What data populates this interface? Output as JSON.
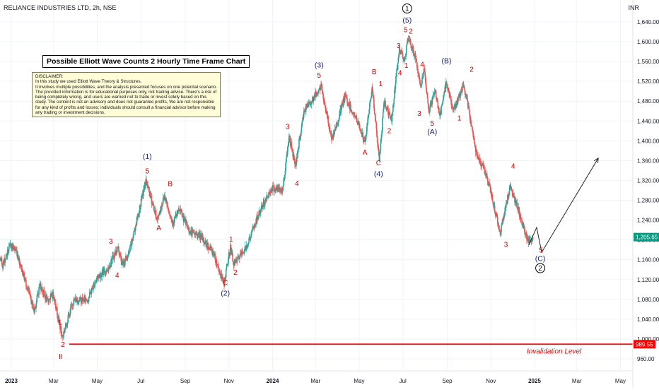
{
  "header": {
    "symbol_line": "RELIANCE INDUSTRIES LTD, 2h, NSE",
    "currency": "INR"
  },
  "annotations": {
    "title_box": "Possible Elliott Wave Counts 2 Hourly Time Frame Chart",
    "disclaimer": "DISCLAIMER:\nIn this study we used Elliott Wave Theory & Structures,\nIt involves multiple possibilities, and the analysis presented focuses on one potential scenario. The provided information is for educational purposes only, not trading advice. There's a risk of being completely wrong, and users are warned not to trade or invest solely based on this study. The content is not an advisory and does not guarantee profits, We are not responsible for any kind of profits and losses; individuals should consult a financial advisor before making any trading or investment decisions.",
    "invalidation_label": "Invalidation Level"
  },
  "colors": {
    "up": "#26a69a",
    "down": "#ef5350",
    "minor_label": "#d50000",
    "major_label": "#1a237e",
    "invalidation": "#ff0000",
    "price_badge": "#089981",
    "grid": "#f0f3fa",
    "axis_text": "#131722"
  },
  "chart_data": {
    "type": "candlestick",
    "title": "Possible Elliott Wave Counts 2 Hourly Time Frame Chart",
    "symbol": "RELIANCE INDUSTRIES LTD",
    "timeframe": "2h",
    "exchange": "NSE",
    "ylim": [
      940,
      1660
    ],
    "y_ticks": [
      960,
      1000,
      1040,
      1080,
      1120,
      1160,
      1200,
      1240,
      1280,
      1320,
      1360,
      1400,
      1440,
      1480,
      1520,
      1560,
      1600,
      1640
    ],
    "y_tick_labels": [
      "960.00",
      "1,000.00",
      "1,040.00",
      "1,080.00",
      "1,120.00",
      "1,160.00",
      "1,200.00",
      "1,240.00",
      "1,280.00",
      "1,320.00",
      "1,360.00",
      "1,400.00",
      "1,440.00",
      "1,480.00",
      "1,520.00",
      "1,560.00",
      "1,600.00",
      "1,640.00"
    ],
    "x_domain": [
      "2023-01-01",
      "2025-05-31"
    ],
    "x_ticks": [
      {
        "date": "2023-01-01",
        "label": "2023",
        "bold": true
      },
      {
        "date": "2023-03-01",
        "label": "Mar"
      },
      {
        "date": "2023-05-01",
        "label": "May"
      },
      {
        "date": "2023-07-01",
        "label": "Jul"
      },
      {
        "date": "2023-09-01",
        "label": "Sep"
      },
      {
        "date": "2023-11-01",
        "label": "Nov"
      },
      {
        "date": "2024-01-01",
        "label": "2024",
        "bold": true
      },
      {
        "date": "2024-03-01",
        "label": "Mar"
      },
      {
        "date": "2024-05-01",
        "label": "May"
      },
      {
        "date": "2024-07-01",
        "label": "Jul"
      },
      {
        "date": "2024-09-01",
        "label": "Sep"
      },
      {
        "date": "2024-11-01",
        "label": "Nov"
      },
      {
        "date": "2025-01-01",
        "label": "2025",
        "bold": true
      },
      {
        "date": "2025-03-01",
        "label": "Mar"
      },
      {
        "date": "2025-05-01",
        "label": "May"
      }
    ],
    "price_path": [
      [
        "2022-12-02",
        1200
      ],
      [
        "2022-12-20",
        1150
      ],
      [
        "2022-12-31",
        1190
      ],
      [
        "2023-01-08",
        1178
      ],
      [
        "2023-02-02",
        1056
      ],
      [
        "2023-02-10",
        1110
      ],
      [
        "2023-02-20",
        1076
      ],
      [
        "2023-03-01",
        1090
      ],
      [
        "2023-03-13",
        1003
      ],
      [
        "2023-03-29",
        1078
      ],
      [
        "2023-04-18",
        1080
      ],
      [
        "2023-05-01",
        1125
      ],
      [
        "2023-05-15",
        1140
      ],
      [
        "2023-05-30",
        1185
      ],
      [
        "2023-06-05",
        1150
      ],
      [
        "2023-06-14",
        1170
      ],
      [
        "2023-06-29",
        1262
      ],
      [
        "2023-07-08",
        1320
      ],
      [
        "2023-07-24",
        1240
      ],
      [
        "2023-08-03",
        1290
      ],
      [
        "2023-08-14",
        1235
      ],
      [
        "2023-08-24",
        1260
      ],
      [
        "2023-09-08",
        1215
      ],
      [
        "2023-09-20",
        1210
      ],
      [
        "2023-10-10",
        1175
      ],
      [
        "2023-10-25",
        1110
      ],
      [
        "2023-11-03",
        1185
      ],
      [
        "2023-11-08",
        1150
      ],
      [
        "2023-11-25",
        1185
      ],
      [
        "2023-12-15",
        1260
      ],
      [
        "2023-12-31",
        1305
      ],
      [
        "2024-01-15",
        1300
      ],
      [
        "2024-01-24",
        1410
      ],
      [
        "2024-02-02",
        1350
      ],
      [
        "2024-02-14",
        1460
      ],
      [
        "2024-03-02",
        1495
      ],
      [
        "2024-03-09",
        1510
      ],
      [
        "2024-03-24",
        1400
      ],
      [
        "2024-04-11",
        1490
      ],
      [
        "2024-05-01",
        1430
      ],
      [
        "2024-05-09",
        1395
      ],
      [
        "2024-05-19",
        1510
      ],
      [
        "2024-05-29",
        1360
      ],
      [
        "2024-06-05",
        1480
      ],
      [
        "2024-06-15",
        1440
      ],
      [
        "2024-06-26",
        1585
      ],
      [
        "2024-07-04",
        1565
      ],
      [
        "2024-07-08",
        1605
      ],
      [
        "2024-07-16",
        1580
      ],
      [
        "2024-07-20",
        1560
      ],
      [
        "2024-07-25",
        1510
      ],
      [
        "2024-07-31",
        1540
      ],
      [
        "2024-08-06",
        1460
      ],
      [
        "2024-08-15",
        1500
      ],
      [
        "2024-08-22",
        1450
      ],
      [
        "2024-08-31",
        1520
      ],
      [
        "2024-09-09",
        1460
      ],
      [
        "2024-09-24",
        1510
      ],
      [
        "2024-09-30",
        1470
      ],
      [
        "2024-10-11",
        1380
      ],
      [
        "2024-10-26",
        1330
      ],
      [
        "2024-11-14",
        1215
      ],
      [
        "2024-11-28",
        1310
      ],
      [
        "2024-12-22",
        1200
      ],
      [
        "2024-12-30",
        1205
      ]
    ],
    "projection": [
      [
        "2024-12-24",
        1190
      ],
      [
        "2025-01-04",
        1225
      ],
      [
        "2025-01-11",
        1175
      ],
      [
        "2025-03-31",
        1365
      ]
    ],
    "invalidation_level": 989.55,
    "last_price": 1205.65,
    "last_price_label": "1,205.65",
    "invalidation_price_label": "989.55",
    "wave_labels": [
      {
        "text": "1",
        "date": "2023-03-10",
        "price": 1035,
        "tier": "minor"
      },
      {
        "text": "2",
        "date": "2023-03-14",
        "price": 990,
        "tier": "minor"
      },
      {
        "text": "II",
        "date": "2023-03-11",
        "price": 966,
        "tier": "minor"
      },
      {
        "text": "3",
        "date": "2023-05-20",
        "price": 1198,
        "tier": "minor"
      },
      {
        "text": "4",
        "date": "2023-05-29",
        "price": 1130,
        "tier": "minor"
      },
      {
        "text": "5",
        "date": "2023-07-10",
        "price": 1340,
        "tier": "minor"
      },
      {
        "text": "(1)",
        "date": "2023-07-10",
        "price": 1369,
        "tier": "major"
      },
      {
        "text": "A",
        "date": "2023-07-26",
        "price": 1225,
        "tier": "minor"
      },
      {
        "text": "B",
        "date": "2023-08-11",
        "price": 1314,
        "tier": "minor"
      },
      {
        "text": "1",
        "date": "2023-11-04",
        "price": 1202,
        "tier": "minor"
      },
      {
        "text": "2",
        "date": "2023-11-10",
        "price": 1135,
        "tier": "minor"
      },
      {
        "text": "C",
        "date": "2023-10-27",
        "price": 1115,
        "tier": "minor"
      },
      {
        "text": "(2)",
        "date": "2023-10-27",
        "price": 1093,
        "tier": "major"
      },
      {
        "text": "3",
        "date": "2024-01-22",
        "price": 1430,
        "tier": "minor"
      },
      {
        "text": "4",
        "date": "2024-02-04",
        "price": 1315,
        "tier": "minor"
      },
      {
        "text": "5",
        "date": "2024-03-06",
        "price": 1533,
        "tier": "minor"
      },
      {
        "text": "(3)",
        "date": "2024-03-06",
        "price": 1554,
        "tier": "major"
      },
      {
        "text": "A",
        "date": "2024-05-09",
        "price": 1378,
        "tier": "minor"
      },
      {
        "text": "B",
        "date": "2024-05-22",
        "price": 1540,
        "tier": "minor"
      },
      {
        "text": "1",
        "date": "2024-05-31",
        "price": 1516,
        "tier": "minor"
      },
      {
        "text": "2",
        "date": "2024-06-12",
        "price": 1421,
        "tier": "minor"
      },
      {
        "text": "C",
        "date": "2024-05-28",
        "price": 1356,
        "tier": "minor"
      },
      {
        "text": "(4)",
        "date": "2024-05-28",
        "price": 1334,
        "tier": "major"
      },
      {
        "text": "3",
        "date": "2024-06-25",
        "price": 1593,
        "tier": "minor"
      },
      {
        "text": "4",
        "date": "2024-06-27",
        "price": 1538,
        "tier": "minor"
      },
      {
        "text": "1",
        "date": "2024-07-06",
        "price": 1553,
        "tier": "minor"
      },
      {
        "text": "5",
        "date": "2024-07-05",
        "price": 1625,
        "tier": "minor"
      },
      {
        "text": "2",
        "date": "2024-07-12",
        "price": 1622,
        "tier": "minor"
      },
      {
        "text": "(5)",
        "date": "2024-07-07",
        "price": 1644,
        "tier": "major"
      },
      {
        "text": "4",
        "date": "2024-07-28",
        "price": 1555,
        "tier": "minor"
      },
      {
        "text": "3",
        "date": "2024-07-24",
        "price": 1456,
        "tier": "minor"
      },
      {
        "text": "5",
        "date": "2024-08-11",
        "price": 1436,
        "tier": "minor"
      },
      {
        "text": "(A)",
        "date": "2024-08-11",
        "price": 1419,
        "tier": "major"
      },
      {
        "text": "(B)",
        "date": "2024-08-31",
        "price": 1562,
        "tier": "major"
      },
      {
        "text": "2",
        "date": "2024-10-05",
        "price": 1545,
        "tier": "minor"
      },
      {
        "text": "1",
        "date": "2024-09-18",
        "price": 1447,
        "tier": "minor"
      },
      {
        "text": "4",
        "date": "2024-12-02",
        "price": 1350,
        "tier": "minor"
      },
      {
        "text": "3",
        "date": "2024-11-22",
        "price": 1192,
        "tier": "minor"
      },
      {
        "text": "5",
        "date": "2025-01-10",
        "price": 1180,
        "tier": "minor"
      },
      {
        "text": "(C)",
        "date": "2025-01-09",
        "price": 1163,
        "tier": "major"
      }
    ],
    "circled_labels": [
      {
        "text": "1",
        "date": "2024-07-07",
        "price": 1667
      },
      {
        "text": "2",
        "date": "2025-01-09",
        "price": 1143
      }
    ]
  }
}
